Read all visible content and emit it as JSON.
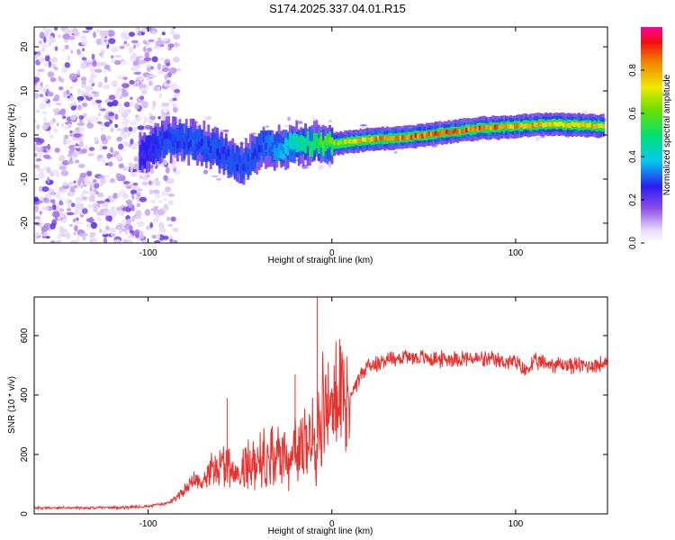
{
  "page": {
    "title": "S174.2025.337.04.01.R15"
  },
  "colorbar": {
    "label": "Normalized spectral amplitude",
    "ticks": [
      "0.0",
      "0.2",
      "0.4",
      "0.6",
      "0.8"
    ],
    "range": [
      0.0,
      1.0
    ]
  },
  "chart_data": [
    {
      "type": "heatmap",
      "title": "",
      "xlabel": "Height of straight line (km)",
      "ylabel": "Frequency (Hz)",
      "xlim": [
        -162,
        150
      ],
      "ylim": [
        -24.5,
        24.5
      ],
      "xticks": [
        -100,
        0,
        100
      ],
      "xtick_labels": [
        "-100",
        "0",
        "100"
      ],
      "yticks": [
        20,
        10,
        0,
        -10,
        -20
      ],
      "ytick_labels": [
        "20",
        "10",
        "0",
        "-10",
        "-20"
      ],
      "noise_region_x": [
        -162,
        -92
      ],
      "ridge": {
        "x": [
          -105,
          -90,
          -80,
          -70,
          -60,
          -50,
          -40,
          -30,
          -20,
          -10,
          0,
          10,
          20,
          40,
          60,
          80,
          100,
          120,
          148
        ],
        "freq": [
          -4,
          -1,
          -1.5,
          -2,
          -4,
          -7,
          -3,
          -3,
          -2,
          -2,
          -2,
          -1.5,
          -1,
          -0.5,
          0.5,
          1.5,
          2,
          2.5,
          2
        ],
        "amplitude": [
          0.25,
          0.3,
          0.3,
          0.3,
          0.3,
          0.3,
          0.3,
          0.35,
          0.45,
          0.55,
          0.65,
          0.75,
          0.85,
          0.9,
          0.92,
          0.9,
          0.85,
          0.8,
          0.8
        ]
      }
    },
    {
      "type": "line",
      "title": "",
      "xlabel": "Height of straight line (km)",
      "ylabel": "SNR (10 * v/v)",
      "xlim": [
        -162,
        150
      ],
      "ylim": [
        0,
        730
      ],
      "xticks": [
        -100,
        0,
        100
      ],
      "xtick_labels": [
        "-100",
        "0",
        "100"
      ],
      "yticks": [
        0,
        200,
        400,
        600
      ],
      "ytick_labels": [
        "0",
        "200",
        "400",
        "600"
      ],
      "series": [
        {
          "name": "SNR",
          "color": "#e8322e",
          "x": [
            -162,
            -150,
            -130,
            -110,
            -100,
            -90,
            -85,
            -80,
            -75,
            -70,
            -65,
            -60,
            -55,
            -50,
            -45,
            -40,
            -35,
            -30,
            -25,
            -20,
            -15,
            -12,
            -10,
            -8,
            -5,
            0,
            5,
            10,
            15,
            20,
            30,
            40,
            50,
            60,
            70,
            80,
            90,
            100,
            105,
            110,
            120,
            130,
            140,
            150
          ],
          "values": [
            20,
            20,
            20,
            22,
            25,
            35,
            55,
            80,
            110,
            120,
            150,
            160,
            150,
            160,
            170,
            180,
            190,
            200,
            200,
            210,
            230,
            250,
            240,
            280,
            330,
            360,
            380,
            400,
            460,
            500,
            520,
            530,
            525,
            520,
            525,
            520,
            515,
            510,
            480,
            510,
            505,
            500,
            500,
            505
          ]
        }
      ],
      "spikes": [
        {
          "x": -57,
          "value": 390
        },
        {
          "x": -20,
          "value": 470
        },
        {
          "x": -8,
          "value": 730
        }
      ]
    }
  ]
}
